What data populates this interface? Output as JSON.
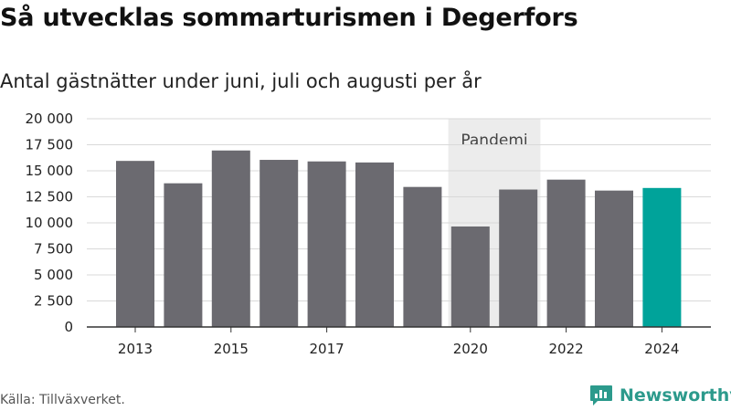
{
  "chart_data": {
    "type": "bar",
    "title": "Så utvecklas sommarturismen i Degerfors",
    "subtitle": "Antal gästnätter under juni, juli och augusti per år",
    "categories": [
      "2013",
      "2014",
      "2015",
      "2016",
      "2017",
      "2018",
      "2019",
      "2020",
      "2021",
      "2022",
      "2023",
      "2024"
    ],
    "x_tick_labels": [
      "2013",
      "2015",
      "2017",
      "2020",
      "2022",
      "2024"
    ],
    "values": [
      15950,
      13800,
      16950,
      16050,
      15900,
      15800,
      13450,
      9650,
      13200,
      14150,
      13100,
      13350
    ],
    "highlight_category": "2024",
    "ylim": [
      0,
      20000
    ],
    "y_ticks": [
      0,
      2500,
      5000,
      7500,
      10000,
      12500,
      15000,
      17500,
      20000
    ],
    "y_tick_labels": [
      "0",
      "2 500",
      "5 000",
      "7 500",
      "10 000",
      "12 500",
      "15 000",
      "17 500",
      "20 000"
    ],
    "grid": true,
    "annotation": {
      "label": "Pandemi",
      "from_category": "2020",
      "to_category": "2021"
    },
    "colors": {
      "bar": "#6b6a70",
      "highlight": "#00a39a",
      "band": "#ececec",
      "grid": "#d9d9d9",
      "axis": "#333333"
    },
    "xlabel": "",
    "ylabel": ""
  },
  "footer": {
    "source": "Källa: Tillväxverket.",
    "brand": "Newsworthy",
    "brand_icon": "newsworthy-chart-logo-icon"
  }
}
